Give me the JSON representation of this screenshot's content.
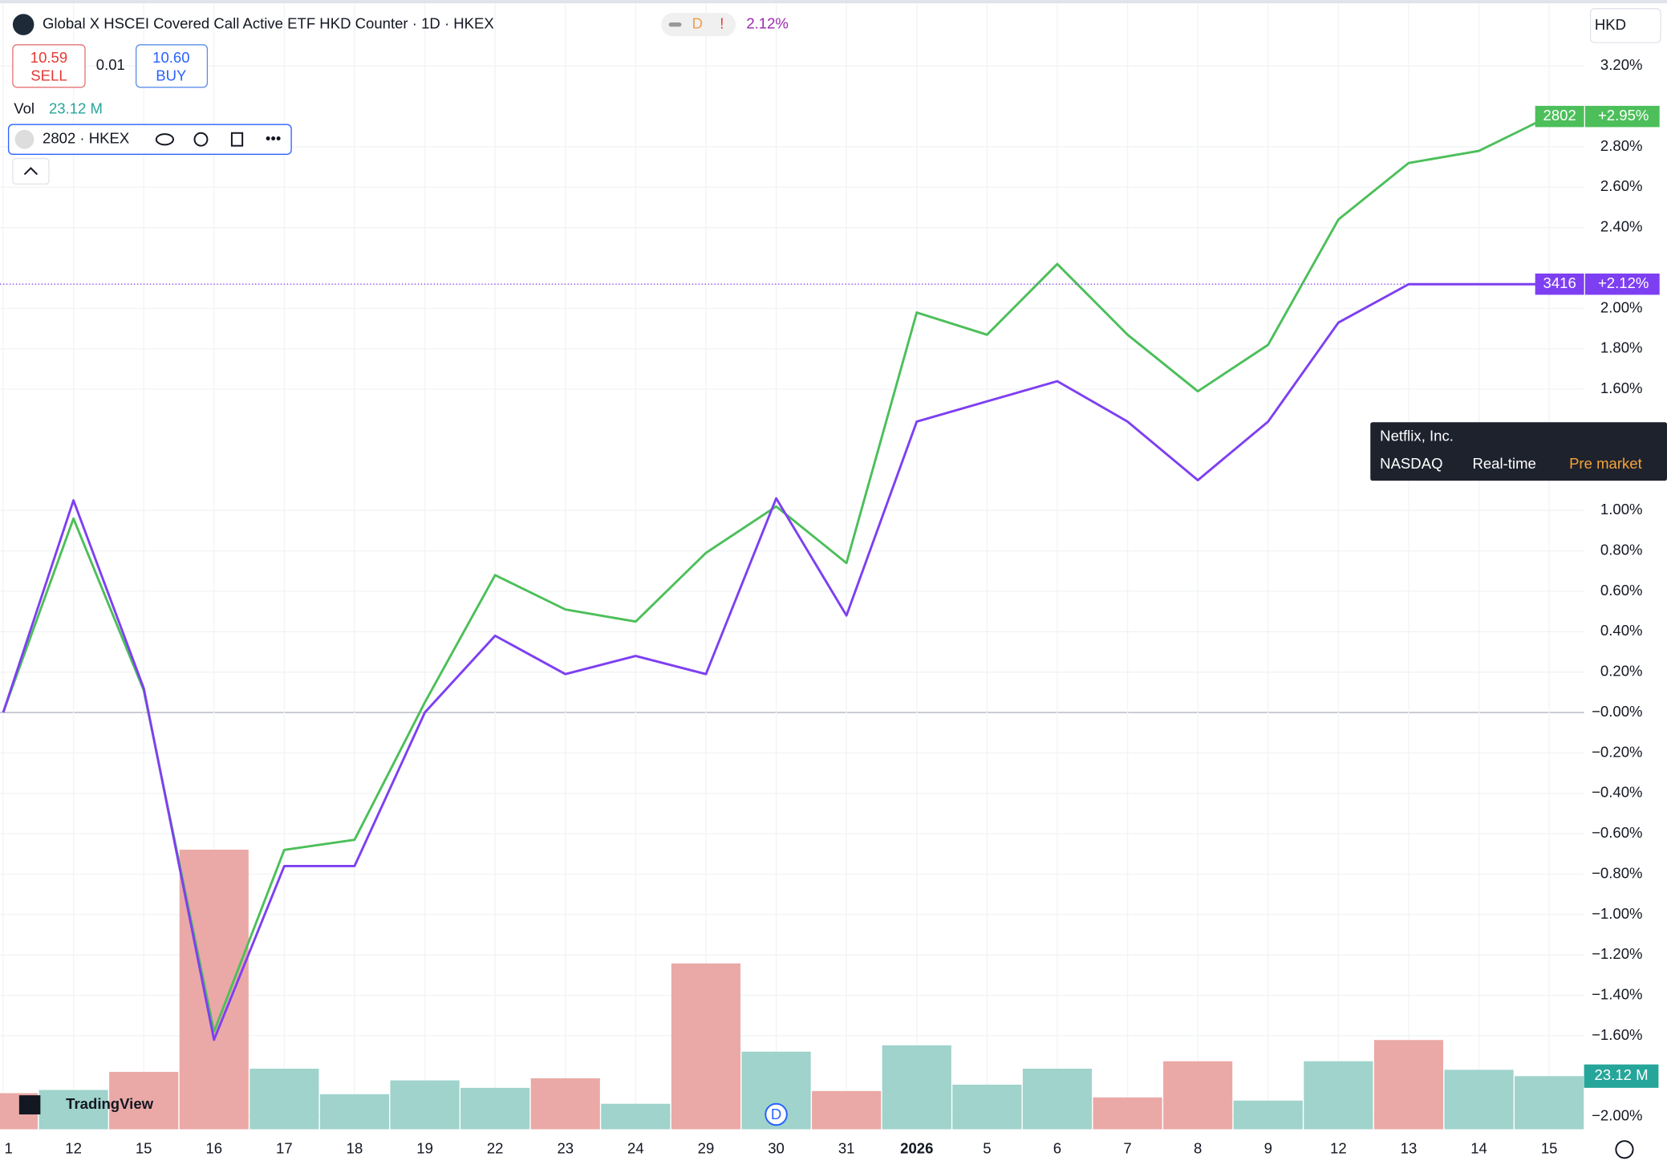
{
  "header": {
    "title": "Global X HSCEI Covered Call Active ETF HKD Counter · 1D · HKEX",
    "badge_d": "D",
    "badge_alert": "!",
    "change": "2.12%",
    "currency": "HKD",
    "sell_price": "10.59",
    "sell": "SELL",
    "spread": "0.01",
    "buy_price": "10.60",
    "buy": "BUY",
    "vol": "Vol",
    "vol_value": "23.12 M",
    "symbol": "2802 · HKEX"
  },
  "tooltip": {
    "name": "Netflix, Inc.",
    "exchange": "NASDAQ",
    "mode": "Real-time",
    "session": "Pre market"
  },
  "logo": "TradingView",
  "event_marker": "D",
  "chart_data": {
    "type": "line",
    "categories": [
      "1",
      "12",
      "15",
      "16",
      "17",
      "18",
      "19",
      "22",
      "23",
      "24",
      "29",
      "30",
      "31",
      "2026",
      "5",
      "6",
      "7",
      "8",
      "9",
      "12",
      "13",
      "14",
      "15"
    ],
    "series": [
      {
        "name": "2802",
        "color": "#4cbf5a",
        "values": [
          0,
          0.96,
          0.11,
          -1.58,
          -0.68,
          -0.63,
          0.05,
          0.68,
          0.51,
          0.45,
          0.79,
          1.02,
          0.74,
          1.98,
          1.87,
          2.22,
          1.87,
          1.59,
          1.82,
          2.44,
          2.72,
          2.78,
          2.95
        ],
        "last_value_label": "+2.95%"
      },
      {
        "name": "3416",
        "color": "#7e3ff2",
        "values": [
          0,
          1.05,
          0.12,
          -1.62,
          -0.76,
          -0.76,
          0,
          0.38,
          0.19,
          0.28,
          0.19,
          1.06,
          0.48,
          1.44,
          1.54,
          1.64,
          1.44,
          1.15,
          1.44,
          1.93,
          2.12,
          2.12,
          2.12
        ],
        "last_value_label": "+2.12%"
      }
    ],
    "volume": {
      "name": "Vol",
      "values": [
        15.72,
        17.11,
        24.97,
        121.6,
        26.36,
        15.26,
        21.27,
        18.03,
        22.2,
        11.1,
        72.13,
        33.76,
        16.65,
        36.53,
        19.42,
        26.36,
        13.87,
        29.59,
        12.48,
        29.59,
        38.84,
        25.89,
        23.12
      ],
      "colors": [
        "#eaa9a6",
        "#9fd3cc",
        "#eaa9a6",
        "#eaa9a6",
        "#9fd3cc",
        "#9fd3cc",
        "#9fd3cc",
        "#9fd3cc",
        "#eaa9a6",
        "#9fd3cc",
        "#eaa9a6",
        "#9fd3cc",
        "#eaa9a6",
        "#9fd3cc",
        "#9fd3cc",
        "#9fd3cc",
        "#eaa9a6",
        "#eaa9a6",
        "#9fd3cc",
        "#9fd3cc",
        "#eaa9a6",
        "#9fd3cc",
        "#9fd3cc"
      ],
      "last_value_label": "23.12 M",
      "label_color": "#26a69a"
    },
    "ylim": [
      -2.063,
      3.526
    ],
    "yticks": [
      {
        "value": 3.2,
        "label": "3.20%"
      },
      {
        "value": 2.8,
        "label": "2.80%"
      },
      {
        "value": 2.6,
        "label": "2.60%"
      },
      {
        "value": 2.4,
        "label": "2.40%"
      },
      {
        "value": 2,
        "label": "2.00%"
      },
      {
        "value": 1.8,
        "label": "1.80%"
      },
      {
        "value": 1.6,
        "label": "1.60%"
      },
      {
        "value": 1,
        "label": "1.00%"
      },
      {
        "value": 0.8,
        "label": "0.80%"
      },
      {
        "value": 0.6,
        "label": "0.60%"
      },
      {
        "value": 0.4,
        "label": "0.40%"
      },
      {
        "value": 0.2,
        "label": "0.20%"
      },
      {
        "value": 0,
        "label": "−0.00%"
      },
      {
        "value": -0.2,
        "label": "−0.20%"
      },
      {
        "value": -0.4,
        "label": "−0.40%"
      },
      {
        "value": -0.6,
        "label": "−0.60%"
      },
      {
        "value": -0.8,
        "label": "−0.80%"
      },
      {
        "value": -1,
        "label": "−1.00%"
      },
      {
        "value": -1.2,
        "label": "−1.20%"
      },
      {
        "value": -1.4,
        "label": "−1.40%"
      },
      {
        "value": -1.6,
        "label": "−1.60%"
      },
      {
        "value": -2,
        "label": "−2.00%"
      }
    ],
    "grid": true
  }
}
